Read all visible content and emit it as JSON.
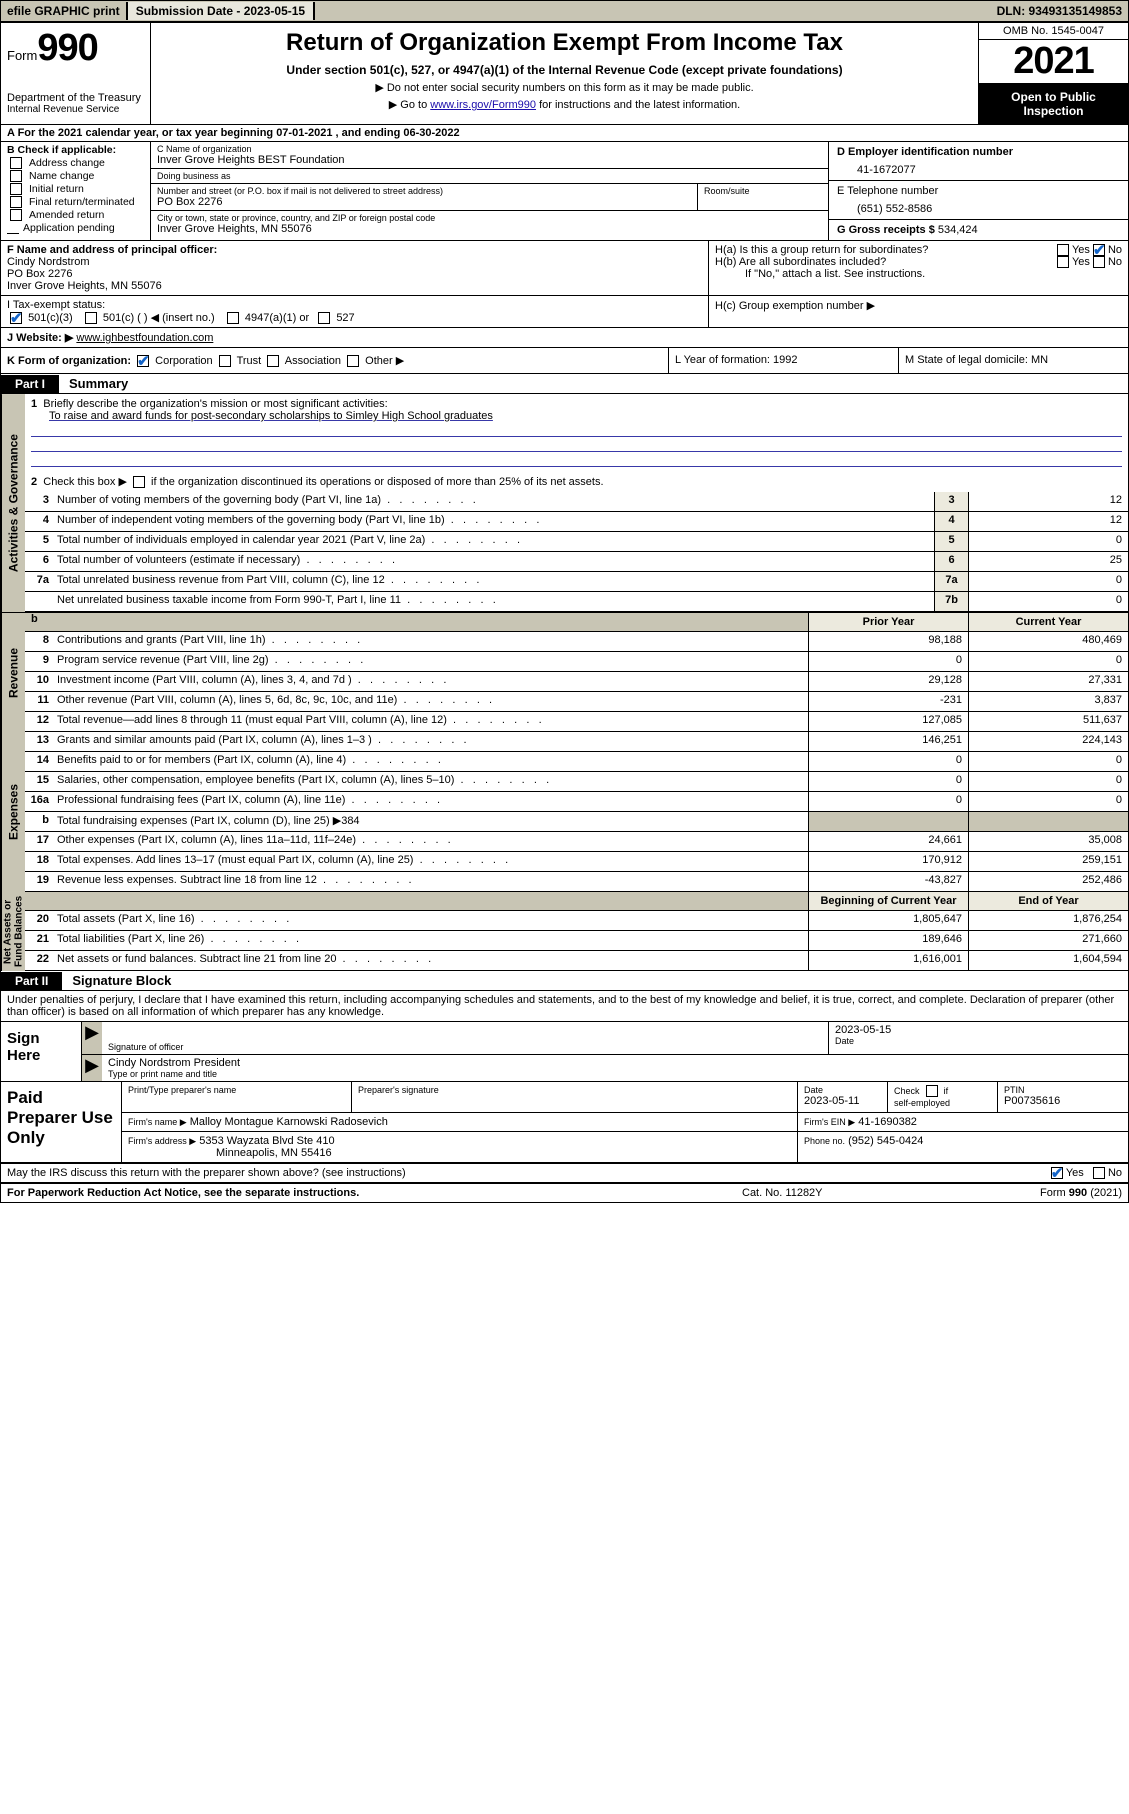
{
  "colors": {
    "topbar_bg": "#c8c5b4",
    "cell_bg": "#eceade",
    "black": "#000000",
    "link": "#1a0dab",
    "check_blue": "#1464c8",
    "rule_blue": "#3838a8"
  },
  "topbar": {
    "efile": "efile GRAPHIC print",
    "sub_label": "Submission Date - 2023-05-15",
    "dln": "DLN: 93493135149853"
  },
  "header": {
    "form_word": "Form",
    "form_num": "990",
    "dept": "Department of the Treasury",
    "irs": "Internal Revenue Service",
    "title": "Return of Organization Exempt From Income Tax",
    "sub1": "Under section 501(c), 527, or 4947(a)(1) of the Internal Revenue Code (except private foundations)",
    "sub2": "▶ Do not enter social security numbers on this form as it may be made public.",
    "sub3_pre": "▶ Go to ",
    "sub3_link": "www.irs.gov/Form990",
    "sub3_post": " for instructions and the latest information.",
    "omb": "OMB No. 1545-0047",
    "year": "2021",
    "open": "Open to Public Inspection"
  },
  "rowA": "A For the 2021 calendar year, or tax year beginning 07-01-2021   , and ending 06-30-2022",
  "colB": {
    "title": "B Check if applicable:",
    "addr": "Address change",
    "name": "Name change",
    "init": "Initial return",
    "final": "Final return/terminated",
    "amend": "Amended return",
    "app": "Application pending"
  },
  "colC": {
    "c_label": "C Name of organization",
    "org_name": "Inver Grove Heights BEST Foundation",
    "dba_label": "Doing business as",
    "dba": "",
    "street_label": "Number and street (or P.O. box if mail is not delivered to street address)",
    "room_label": "Room/suite",
    "street": "PO Box 2276",
    "city_label": "City or town, state or province, country, and ZIP or foreign postal code",
    "city": "Inver Grove Heights, MN  55076"
  },
  "colD": {
    "d_label": "D Employer identification number",
    "ein": "41-1672077",
    "e_label": "E Telephone number",
    "phone": "(651) 552-8586",
    "g_label": "G Gross receipts $",
    "gross": "534,424"
  },
  "rowF": {
    "f_label": "F Name and address of principal officer:",
    "f_name": "Cindy Nordstrom",
    "f_street": "PO Box 2276",
    "f_city": "Inver Grove Heights, MN  55076",
    "ha": "H(a)  Is this a group return for subordinates?",
    "hb": "H(b)  Are all subordinates included?",
    "hb_note": "If \"No,\" attach a list. See instructions.",
    "yes": "Yes",
    "no": "No"
  },
  "rowI": {
    "label": "I   Tax-exempt status:",
    "c3": "501(c)(3)",
    "c": "501(c) (  ) ◀ (insert no.)",
    "a1": "4947(a)(1) or",
    "s527": "527",
    "hc": "H(c)  Group exemption number ▶"
  },
  "rowJ": {
    "label": "J   Website: ▶",
    "site": "www.ighbestfoundation.com"
  },
  "rowK": {
    "k_label": "K Form of organization:",
    "corp": "Corporation",
    "trust": "Trust",
    "assoc": "Association",
    "other": "Other ▶",
    "l": "L Year of formation: 1992",
    "m": "M State of legal domicile: MN"
  },
  "part1": {
    "num": "Part I",
    "title": "Summary"
  },
  "summary": {
    "q1": "Briefly describe the organization's mission or most significant activities:",
    "mission": "To raise and award funds for post-secondary scholarships to Simley High School graduates",
    "q2_pre": "Check this box ▶",
    "q2_post": "if the organization discontinued its operations or disposed of more than 25% of its net assets.",
    "lines_gov": [
      {
        "n": "3",
        "d": "Number of voting members of the governing body (Part VI, line 1a)",
        "box": "3",
        "v": "12"
      },
      {
        "n": "4",
        "d": "Number of independent voting members of the governing body (Part VI, line 1b)",
        "box": "4",
        "v": "12"
      },
      {
        "n": "5",
        "d": "Total number of individuals employed in calendar year 2021 (Part V, line 2a)",
        "box": "5",
        "v": "0"
      },
      {
        "n": "6",
        "d": "Total number of volunteers (estimate if necessary)",
        "box": "6",
        "v": "25"
      },
      {
        "n": "7a",
        "d": "Total unrelated business revenue from Part VIII, column (C), line 12",
        "box": "7a",
        "v": "0"
      },
      {
        "n": "",
        "d": "Net unrelated business taxable income from Form 990-T, Part I, line 11",
        "box": "7b",
        "v": "0"
      }
    ],
    "prior_hdr": "Prior Year",
    "current_hdr": "Current Year",
    "beg_hdr": "Beginning of Current Year",
    "end_hdr": "End of Year",
    "b_label": "b",
    "revenue": [
      {
        "n": "8",
        "d": "Contributions and grants (Part VIII, line 1h)",
        "p": "98,188",
        "c": "480,469"
      },
      {
        "n": "9",
        "d": "Program service revenue (Part VIII, line 2g)",
        "p": "0",
        "c": "0"
      },
      {
        "n": "10",
        "d": "Investment income (Part VIII, column (A), lines 3, 4, and 7d )",
        "p": "29,128",
        "c": "27,331"
      },
      {
        "n": "11",
        "d": "Other revenue (Part VIII, column (A), lines 5, 6d, 8c, 9c, 10c, and 11e)",
        "p": "-231",
        "c": "3,837"
      },
      {
        "n": "12",
        "d": "Total revenue—add lines 8 through 11 (must equal Part VIII, column (A), line 12)",
        "p": "127,085",
        "c": "511,637"
      }
    ],
    "expenses": [
      {
        "n": "13",
        "d": "Grants and similar amounts paid (Part IX, column (A), lines 1–3 )",
        "p": "146,251",
        "c": "224,143"
      },
      {
        "n": "14",
        "d": "Benefits paid to or for members (Part IX, column (A), line 4)",
        "p": "0",
        "c": "0"
      },
      {
        "n": "15",
        "d": "Salaries, other compensation, employee benefits (Part IX, column (A), lines 5–10)",
        "p": "0",
        "c": "0"
      },
      {
        "n": "16a",
        "d": "Professional fundraising fees (Part IX, column (A), line 11e)",
        "p": "0",
        "c": "0"
      },
      {
        "n": "b",
        "d": "Total fundraising expenses (Part IX, column (D), line 25) ▶384",
        "p": "",
        "c": "",
        "grey": true
      },
      {
        "n": "17",
        "d": "Other expenses (Part IX, column (A), lines 11a–11d, 11f–24e)",
        "p": "24,661",
        "c": "35,008"
      },
      {
        "n": "18",
        "d": "Total expenses. Add lines 13–17 (must equal Part IX, column (A), line 25)",
        "p": "170,912",
        "c": "259,151"
      },
      {
        "n": "19",
        "d": "Revenue less expenses. Subtract line 18 from line 12",
        "p": "-43,827",
        "c": "252,486"
      }
    ],
    "netassets": [
      {
        "n": "20",
        "d": "Total assets (Part X, line 16)",
        "p": "1,805,647",
        "c": "1,876,254"
      },
      {
        "n": "21",
        "d": "Total liabilities (Part X, line 26)",
        "p": "189,646",
        "c": "271,660"
      },
      {
        "n": "22",
        "d": "Net assets or fund balances. Subtract line 21 from line 20",
        "p": "1,616,001",
        "c": "1,604,594"
      }
    ]
  },
  "vlabels": {
    "gov": "Activities & Governance",
    "rev": "Revenue",
    "exp": "Expenses",
    "net": "Net Assets or Fund Balances"
  },
  "part2": {
    "num": "Part II",
    "title": "Signature Block"
  },
  "sig": {
    "decl": "Under penalties of perjury, I declare that I have examined this return, including accompanying schedules and statements, and to the best of my knowledge and belief, it is true, correct, and complete. Declaration of preparer (other than officer) is based on all information of which preparer has any knowledge.",
    "sign_here": "Sign Here",
    "sig_officer": "Signature of officer",
    "date_label": "Date",
    "sig_date": "2023-05-15",
    "name_title": "Cindy Nordstrom President",
    "type_label": "Type or print name and title"
  },
  "prep": {
    "label": "Paid Preparer Use Only",
    "h_name": "Print/Type preparer's name",
    "h_sig": "Preparer's signature",
    "h_date": "Date",
    "date": "2023-05-11",
    "h_check": "Check",
    "h_self": "self-employed",
    "h_if": "if",
    "h_ptin": "PTIN",
    "ptin": "P00735616",
    "firm_name_l": "Firm's name      ▶",
    "firm_name": "Malloy Montague Karnowski Radosevich",
    "firm_ein_l": "Firm's EIN ▶",
    "firm_ein": "41-1690382",
    "firm_addr_l": "Firm's address ▶",
    "firm_addr1": "5353 Wayzata Blvd Ste 410",
    "firm_addr2": "Minneapolis, MN  55416",
    "phone_l": "Phone no.",
    "phone": "(952) 545-0424"
  },
  "may": {
    "q": "May the IRS discuss this return with the preparer shown above? (see instructions)",
    "yes": "Yes",
    "no": "No"
  },
  "footer": {
    "left": "For Paperwork Reduction Act Notice, see the separate instructions.",
    "mid": "Cat. No. 11282Y",
    "right_pre": "Form ",
    "right_num": "990",
    "right_post": " (2021)"
  }
}
